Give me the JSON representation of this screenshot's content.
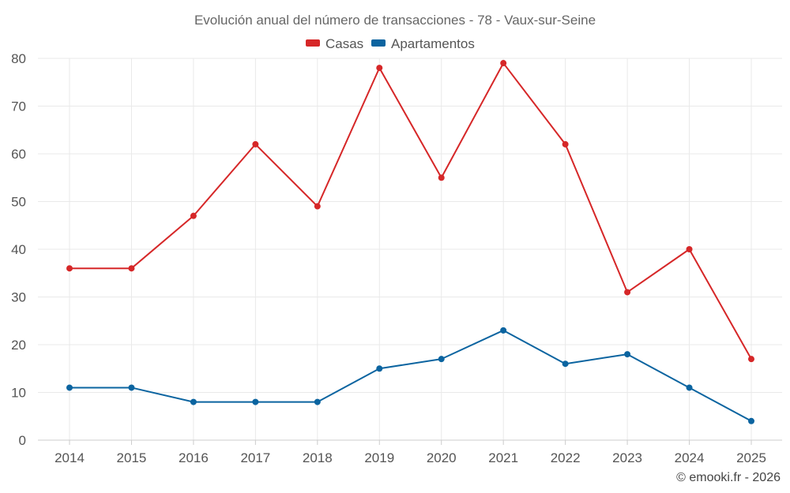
{
  "chart_data": {
    "type": "line",
    "title": "Evolución anual del número de transacciones - 78 - Vaux-sur-Seine",
    "categories": [
      "2014",
      "2015",
      "2016",
      "2017",
      "2018",
      "2019",
      "2020",
      "2021",
      "2022",
      "2023",
      "2024",
      "2025"
    ],
    "series": [
      {
        "name": "Casas",
        "color": "#d62728",
        "values": [
          36,
          36,
          47,
          62,
          49,
          78,
          55,
          79,
          62,
          31,
          40,
          17
        ]
      },
      {
        "name": "Apartamentos",
        "color": "#0b64a0",
        "values": [
          11,
          11,
          8,
          8,
          8,
          15,
          17,
          23,
          16,
          18,
          11,
          4
        ]
      }
    ],
    "ylim": [
      0,
      80
    ],
    "yticks": [
      "0",
      "10",
      "20",
      "30",
      "40",
      "50",
      "60",
      "70",
      "80"
    ],
    "xlabel": "",
    "ylabel": "",
    "grid": true,
    "legend_position": "top-center"
  },
  "credit": "© emooki.fr - 2026"
}
